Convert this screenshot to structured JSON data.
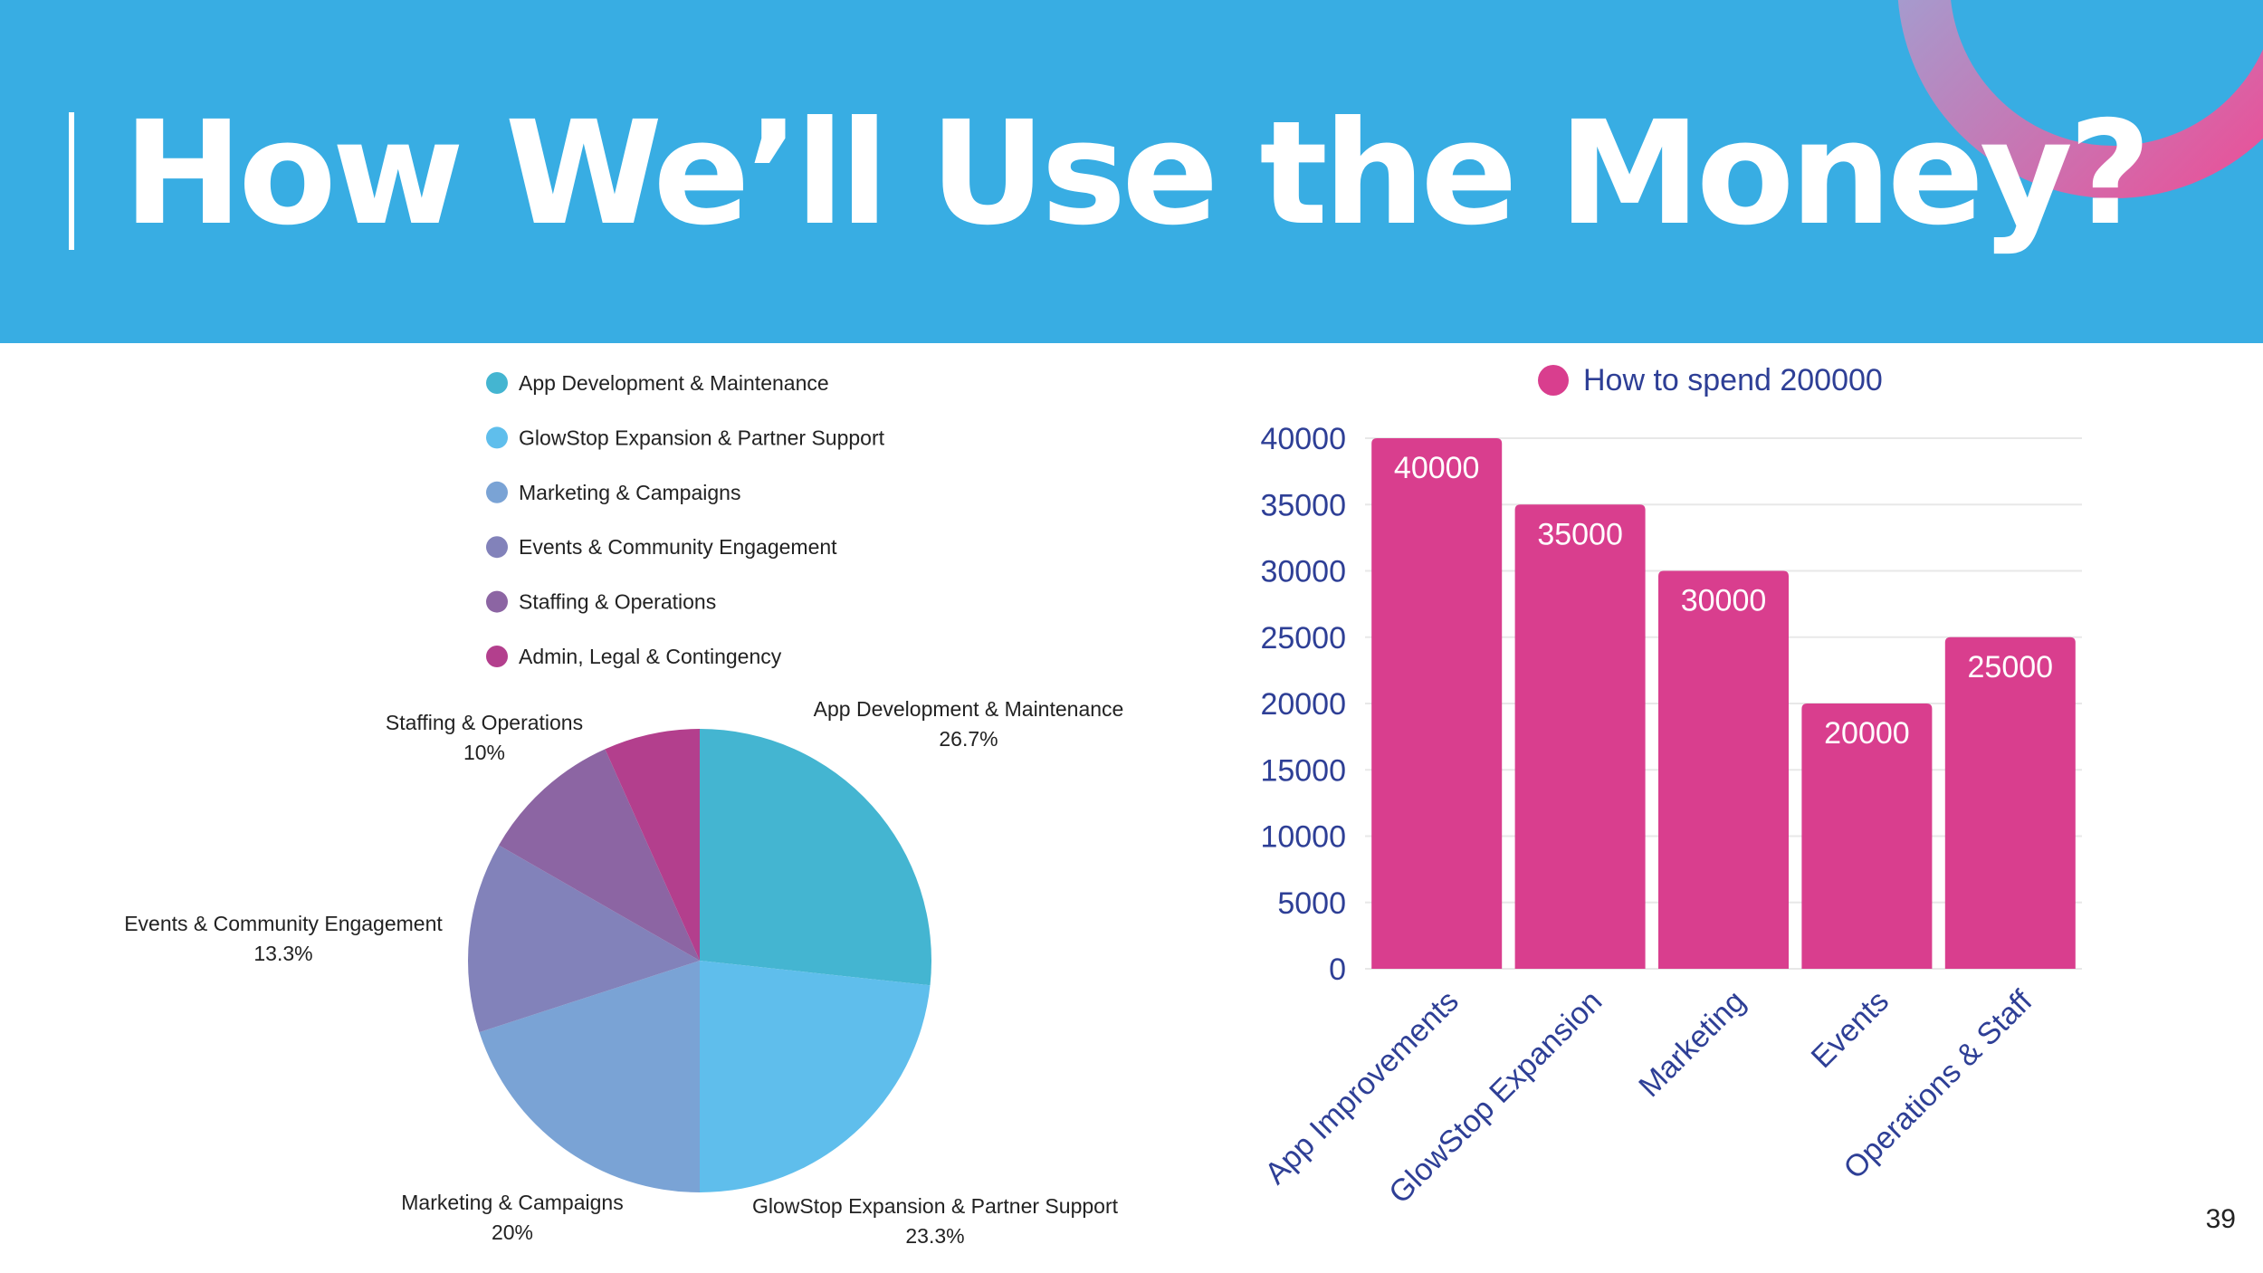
{
  "slide": {
    "title": "How We’ll Use the Money?",
    "page_number": "39"
  },
  "colors": {
    "header_bg": "#38ade3",
    "bar_color": "#d93e8e",
    "axis_text": "#2e3f96"
  },
  "chart_data": [
    {
      "type": "pie",
      "title": "",
      "legend_position": "top",
      "categories": [
        "App Development & Maintenance",
        "GlowStop Expansion & Partner Support",
        "Marketing & Campaigns",
        "Events & Community Engagement",
        "Staffing & Operations",
        "Admin, Legal & Contingency"
      ],
      "values": [
        26.7,
        23.3,
        20,
        13.3,
        10,
        6.7
      ],
      "value_labels": [
        "26.7%",
        "23.3%",
        "20%",
        "13.3%",
        "10%",
        ""
      ],
      "colors": [
        "#44b5d1",
        "#5fbeec",
        "#7aa3d5",
        "#8282ba",
        "#8c65a3",
        "#b33f8d"
      ]
    },
    {
      "type": "bar",
      "title": "",
      "series": [
        {
          "name": "How to spend 200000",
          "values": [
            40000,
            35000,
            30000,
            20000,
            25000
          ]
        }
      ],
      "categories": [
        "App Improvements",
        "GlowStop Expansion",
        "Marketing",
        "Events",
        "Operations & Staff"
      ],
      "ylim": [
        0,
        40000
      ],
      "yticks": [
        "40000",
        "35000",
        "30000",
        "25000",
        "20000",
        "15000",
        "10000",
        "5000",
        "0"
      ],
      "data_labels": [
        "40000",
        "35000",
        "30000",
        "20000",
        "25000"
      ],
      "legend_position": "top",
      "grid": true,
      "xlabel": "",
      "ylabel": ""
    }
  ]
}
